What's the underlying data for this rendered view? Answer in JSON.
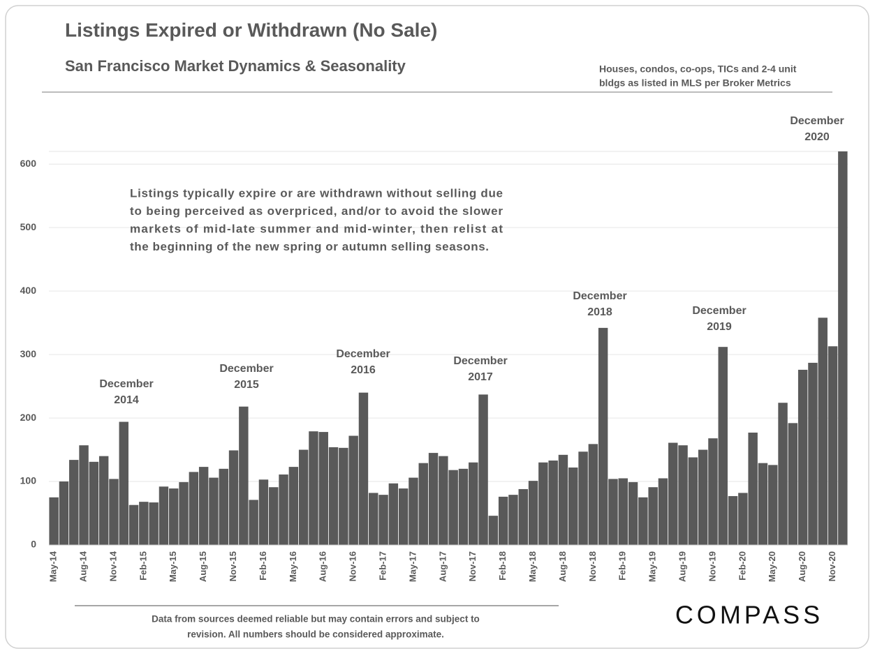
{
  "chart_data": {
    "type": "bar",
    "title": "Listings Expired or Withdrawn (No Sale)",
    "subtitle": "San Francisco Market Dynamics & Seasonality",
    "source_note": [
      "Houses, condos, co-ops, TICs and 2-4 unit",
      "bldgs as listed in MLS per Broker Metrics"
    ],
    "note": [
      "Listings typically expire or are withdrawn without selling due",
      "to being perceived as overpriced, and/or to avoid the slower",
      "markets of mid-late summer and mid-winter, then relist at",
      "the beginning of the new spring or autumn selling seasons."
    ],
    "disclaimer": [
      "Data from sources deemed reliable but may contain errors and subject to",
      "revision.  All numbers should be considered approximate."
    ],
    "brand": "COMPASS",
    "annotations": [
      [
        "December",
        "2014"
      ],
      [
        "December",
        "2015"
      ],
      [
        "December",
        "2016"
      ],
      [
        "December",
        "2017"
      ],
      [
        "December",
        "2018"
      ],
      [
        "December",
        "2019"
      ],
      [
        "December",
        "2020"
      ]
    ],
    "categories": [
      "May-14",
      null,
      null,
      "Aug-14",
      null,
      null,
      "Nov-14",
      null,
      null,
      "Feb-15",
      null,
      null,
      "May-15",
      null,
      null,
      "Aug-15",
      null,
      null,
      "Nov-15",
      null,
      null,
      "Feb-16",
      null,
      null,
      "May-16",
      null,
      null,
      "Aug-16",
      null,
      null,
      "Nov-16",
      null,
      null,
      "Feb-17",
      null,
      null,
      "May-17",
      null,
      null,
      "Aug-17",
      null,
      null,
      "Nov-17",
      null,
      null,
      "Feb-18",
      null,
      null,
      "May-18",
      null,
      null,
      "Aug-18",
      null,
      null,
      "Nov-18",
      null,
      null,
      "Feb-19",
      null,
      null,
      "May-19",
      null,
      null,
      "Aug-19",
      null,
      null,
      "Nov-19",
      null,
      null,
      "Feb-20",
      null,
      null,
      "May-20",
      null,
      null,
      "Aug-20",
      null,
      null,
      "Nov-20",
      null
    ],
    "values": [
      75,
      100,
      134,
      157,
      131,
      140,
      104,
      194,
      63,
      68,
      67,
      92,
      89,
      99,
      115,
      123,
      106,
      120,
      149,
      218,
      71,
      103,
      91,
      111,
      123,
      150,
      179,
      178,
      154,
      153,
      172,
      240,
      82,
      79,
      97,
      89,
      106,
      129,
      145,
      140,
      118,
      120,
      130,
      237,
      46,
      76,
      79,
      88,
      101,
      130,
      133,
      142,
      122,
      147,
      159,
      342,
      104,
      105,
      99,
      75,
      91,
      105,
      161,
      157,
      138,
      150,
      168,
      312,
      77,
      82,
      177,
      129,
      126,
      224,
      192,
      276,
      287,
      358,
      313,
      650
    ],
    "color": "#595959",
    "ylim": [
      0,
      620
    ],
    "yticks": [
      0,
      100,
      200,
      300,
      400,
      500,
      600
    ],
    "grid": true
  }
}
